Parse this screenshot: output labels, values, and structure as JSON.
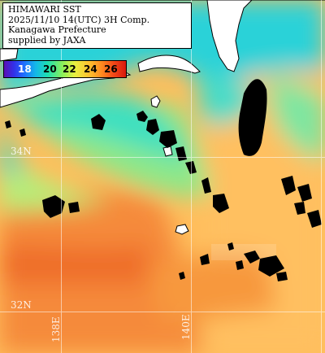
{
  "header": {
    "title": "HIMAWARI SST",
    "datetime": "2025/11/10 14(UTC) 3H Comp.",
    "region": "Kanagawa Prefecture",
    "credit": "supplied by JAXA"
  },
  "legend": {
    "ticks": [
      "18",
      "20",
      "22",
      "24",
      "26"
    ],
    "tick_colors": [
      "#ffffff",
      "#000000",
      "#000000",
      "#000000",
      "#000000"
    ]
  },
  "grid_labels": {
    "lat_34": "34N",
    "lat_32": "32N",
    "lon_138": "138E",
    "lon_140": "140E"
  },
  "colors": {
    "land": "#ffffff",
    "cloud_mask": "#000000",
    "cold_coastal": "#28d8d8",
    "mid_water": "#8ce87c",
    "warm_offshore": "#ffb050",
    "kuroshio": "#f07a2c"
  }
}
